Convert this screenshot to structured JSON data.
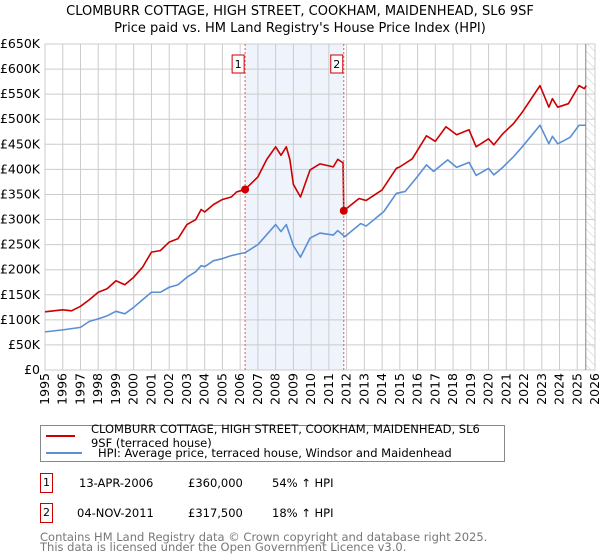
{
  "title": "CLOMBURR COTTAGE, HIGH STREET, COOKHAM, MAIDENHEAD, SL6 9SF",
  "subtitle": "Price paid vs. HM Land Registry's House Price Index (HPI)",
  "colors": {
    "property": "#cc0000",
    "hpi": "#5b8fd4",
    "shade": "#eef3fc"
  },
  "chart_data": {
    "type": "line",
    "xlim": [
      1995,
      2026
    ],
    "ylim": [
      0,
      650000
    ],
    "x_ticks": [
      "1995",
      "1996",
      "1997",
      "1998",
      "1999",
      "2000",
      "2001",
      "2002",
      "2003",
      "2004",
      "2005",
      "2006",
      "2007",
      "2008",
      "2009",
      "2010",
      "2011",
      "2012",
      "2013",
      "2014",
      "2015",
      "2016",
      "2017",
      "2018",
      "2019",
      "2020",
      "2021",
      "2022",
      "2023",
      "2024",
      "2025",
      "2026"
    ],
    "y_ticks": [
      {
        "v": 0,
        "label": "£0"
      },
      {
        "v": 50000,
        "label": "£50K"
      },
      {
        "v": 100000,
        "label": "£100K"
      },
      {
        "v": 150000,
        "label": "£150K"
      },
      {
        "v": 200000,
        "label": "£200K"
      },
      {
        "v": 250000,
        "label": "£250K"
      },
      {
        "v": 300000,
        "label": "£300K"
      },
      {
        "v": 350000,
        "label": "£350K"
      },
      {
        "v": 400000,
        "label": "£400K"
      },
      {
        "v": 450000,
        "label": "£450K"
      },
      {
        "v": 500000,
        "label": "£500K"
      },
      {
        "v": 550000,
        "label": "£550K"
      },
      {
        "v": 600000,
        "label": "£600K"
      },
      {
        "v": 650000,
        "label": "£650K"
      }
    ],
    "grid": true,
    "shaded_range": [
      2006.28,
      2011.84
    ],
    "future_hatch_from": 2025.48,
    "series": [
      {
        "name": "CLOMBURR COTTAGE, HIGH STREET, COOKHAM, MAIDENHEAD, SL6 9SF (terraced house)",
        "color": "#cc0000",
        "points": [
          [
            1995,
            116
          ],
          [
            1996,
            120
          ],
          [
            1996.5,
            118
          ],
          [
            1997,
            127
          ],
          [
            1997.5,
            140
          ],
          [
            1998,
            155
          ],
          [
            1998.5,
            162
          ],
          [
            1999,
            178
          ],
          [
            1999.5,
            170
          ],
          [
            2000,
            185
          ],
          [
            2000.5,
            205
          ],
          [
            2001,
            235
          ],
          [
            2001.5,
            238
          ],
          [
            2002,
            255
          ],
          [
            2002.5,
            262
          ],
          [
            2003,
            290
          ],
          [
            2003.5,
            300
          ],
          [
            2003.8,
            320
          ],
          [
            2004,
            315
          ],
          [
            2004.5,
            330
          ],
          [
            2005,
            340
          ],
          [
            2005.5,
            345
          ],
          [
            2005.8,
            355
          ],
          [
            2006.28,
            360
          ],
          [
            2007,
            385
          ],
          [
            2007.5,
            420
          ],
          [
            2008,
            445
          ],
          [
            2008.3,
            428
          ],
          [
            2008.6,
            445
          ],
          [
            2008.8,
            420
          ],
          [
            2009,
            370
          ],
          [
            2009.4,
            345
          ],
          [
            2009.94,
            399
          ],
          [
            2010.5,
            411
          ],
          [
            2011.25,
            405
          ],
          [
            2011.5,
            420
          ],
          [
            2011.8,
            413
          ],
          [
            2011.84,
            317.5
          ],
          [
            2012.7,
            342
          ],
          [
            2013.1,
            338
          ],
          [
            2014,
            359
          ],
          [
            2014.8,
            402
          ],
          [
            2015,
            405
          ],
          [
            2015.7,
            421
          ],
          [
            2016.5,
            467
          ],
          [
            2017,
            456
          ],
          [
            2017.6,
            485
          ],
          [
            2018.2,
            469
          ],
          [
            2018.9,
            479
          ],
          [
            2019.3,
            445
          ],
          [
            2020,
            461
          ],
          [
            2020.3,
            449
          ],
          [
            2020.8,
            471
          ],
          [
            2021.4,
            491
          ],
          [
            2021.9,
            514
          ],
          [
            2022.9,
            567
          ],
          [
            2023.4,
            524
          ],
          [
            2023.6,
            541
          ],
          [
            2023.9,
            524
          ],
          [
            2024.5,
            531
          ],
          [
            2025.1,
            567
          ],
          [
            2025.4,
            561
          ],
          [
            2025.5,
            567
          ]
        ]
      },
      {
        "name": "HPI: Average price, terraced house, Windsor and Maidenhead",
        "color": "#5b8fd4",
        "points": [
          [
            1995,
            76
          ],
          [
            1996,
            80
          ],
          [
            1997,
            85
          ],
          [
            1997.5,
            97
          ],
          [
            1998,
            102
          ],
          [
            1998.5,
            108
          ],
          [
            1999,
            117
          ],
          [
            1999.5,
            112
          ],
          [
            2000,
            125
          ],
          [
            2000.5,
            140
          ],
          [
            2001,
            155
          ],
          [
            2001.5,
            155
          ],
          [
            2002,
            165
          ],
          [
            2002.5,
            170
          ],
          [
            2003,
            185
          ],
          [
            2003.5,
            196
          ],
          [
            2003.8,
            208
          ],
          [
            2004,
            206
          ],
          [
            2004.5,
            218
          ],
          [
            2005,
            222
          ],
          [
            2005.5,
            228
          ],
          [
            2006,
            232
          ],
          [
            2006.28,
            234
          ],
          [
            2007,
            250
          ],
          [
            2007.5,
            270
          ],
          [
            2008,
            290
          ],
          [
            2008.3,
            276
          ],
          [
            2008.6,
            290
          ],
          [
            2009,
            248
          ],
          [
            2009.4,
            225
          ],
          [
            2009.94,
            263
          ],
          [
            2010.5,
            273
          ],
          [
            2011.25,
            269
          ],
          [
            2011.5,
            278
          ],
          [
            2011.9,
            266
          ],
          [
            2012.8,
            292
          ],
          [
            2013.1,
            287
          ],
          [
            2014.1,
            316
          ],
          [
            2014.8,
            352
          ],
          [
            2015.3,
            356
          ],
          [
            2016,
            386
          ],
          [
            2016.5,
            409
          ],
          [
            2016.9,
            396
          ],
          [
            2017.7,
            419
          ],
          [
            2018.2,
            404
          ],
          [
            2018.9,
            414
          ],
          [
            2019.3,
            388
          ],
          [
            2020,
            402
          ],
          [
            2020.3,
            389
          ],
          [
            2020.8,
            404
          ],
          [
            2021.4,
            425
          ],
          [
            2021.9,
            445
          ],
          [
            2022.9,
            488
          ],
          [
            2023.4,
            451
          ],
          [
            2023.6,
            466
          ],
          [
            2023.9,
            451
          ],
          [
            2024.6,
            464
          ],
          [
            2025.1,
            488
          ],
          [
            2025.5,
            488
          ]
        ]
      }
    ],
    "sales": [
      {
        "label": "1",
        "x": 2006.28,
        "y": 360
      },
      {
        "label": "2",
        "x": 2011.84,
        "y": 317.5
      }
    ]
  },
  "legend": {
    "property": "CLOMBURR COTTAGE, HIGH STREET, COOKHAM, MAIDENHEAD, SL6 9SF (terraced house)",
    "hpi": "HPI: Average price, terraced house, Windsor and Maidenhead"
  },
  "transactions": [
    {
      "num": "1",
      "date": "13-APR-2006",
      "price": "£360,000",
      "hpi": "54% ↑ HPI"
    },
    {
      "num": "2",
      "date": "04-NOV-2011",
      "price": "£317,500",
      "hpi": "18% ↑ HPI"
    }
  ],
  "footer": {
    "line1": "Contains HM Land Registry data © Crown copyright and database right 2025.",
    "line2": "This data is licensed under the Open Government Licence v3.0."
  }
}
